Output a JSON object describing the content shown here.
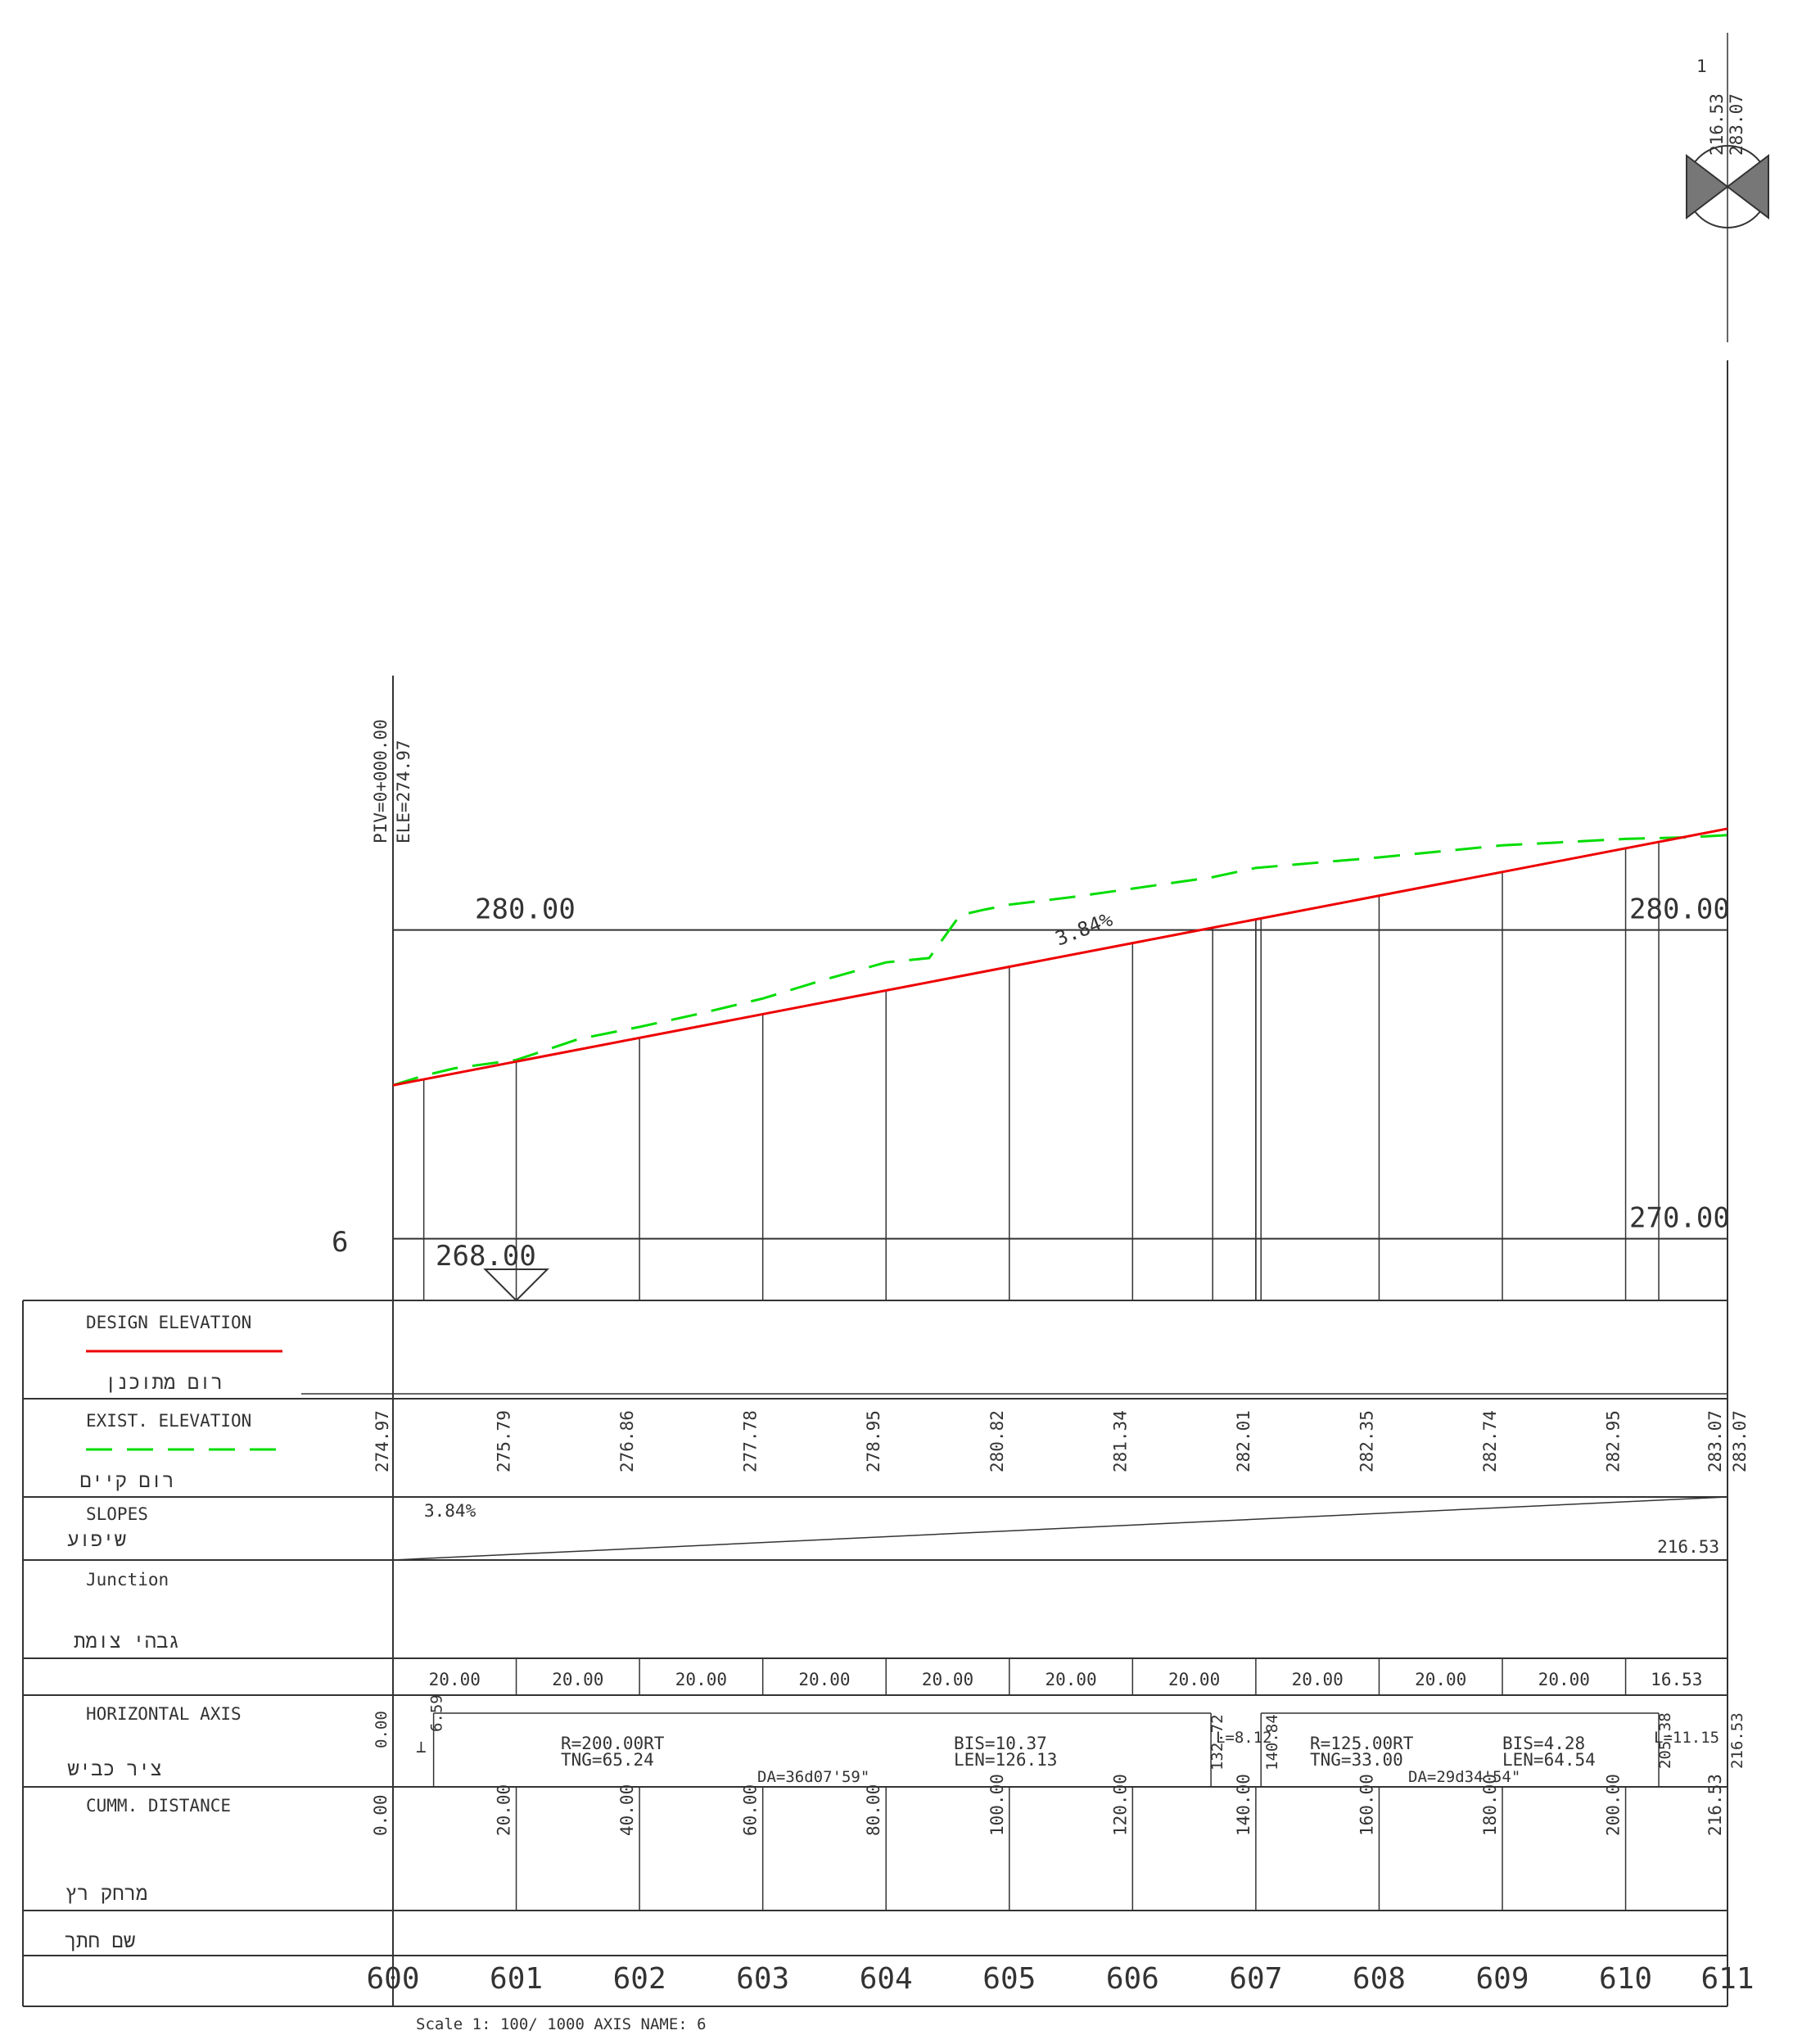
{
  "profile": {
    "sheet_number": "1",
    "axis_marker": "6",
    "end_labels": [
      "216.53",
      "283.07"
    ],
    "pvi_label": "PIV=0+000.00",
    "ele_label": "ELE=274.97",
    "slope_label": "3.84%",
    "gridlines": [
      {
        "label_left": "280.00",
        "label_right": "280.00",
        "elevation": 280
      },
      {
        "label_left": "",
        "label_right": "270.00",
        "elevation": 270
      }
    ],
    "datum_label": "268.00",
    "datum_elevation": 268
  },
  "table": {
    "rows": {
      "design_en": "DESIGN ELEVATION",
      "design_he": "רום מתוכנן",
      "exist_en": "EXIST. ELEVATION",
      "exist_he": "רום קיים",
      "slopes_en": "SLOPES",
      "slopes_he": "שיפוע",
      "junction_en": "Junction",
      "junction_he": "גבהי צומת",
      "haxis_en": "HORIZONTAL AXIS",
      "haxis_he": "ציר כביש",
      "cumm_en": "CUMM.    DISTANCE",
      "cumm_he": "מרחק רץ",
      "section_he": "שם חתך"
    },
    "exist_elevations": [
      "274.97",
      "275.79",
      "276.86",
      "277.78",
      "278.95",
      "280.82",
      "281.34",
      "282.01",
      "282.35",
      "282.74",
      "282.95",
      "283.07"
    ],
    "slope_text": "3.84%",
    "slope_length": "216.53",
    "intervals": [
      "20.00",
      "20.00",
      "20.00",
      "20.00",
      "20.00",
      "20.00",
      "20.00",
      "20.00",
      "20.00",
      "20.00",
      "16.53"
    ],
    "cumm_distances": [
      "0.00",
      "20.00",
      "40.00",
      "60.00",
      "80.00",
      "100.00",
      "120.00",
      "140.00",
      "160.00",
      "180.00",
      "200.00",
      "216.53"
    ],
    "sections": [
      "600",
      "601",
      "602",
      "603",
      "604",
      "605",
      "606",
      "607",
      "608",
      "609",
      "610",
      "611"
    ],
    "horizontal_axis": {
      "start": "0.00",
      "curve1": {
        "r": "R=200.00RT",
        "tng": "TNG=65.24",
        "bis": "BIS=10.37",
        "len": "LEN=126.13",
        "da": "DA=36d07'59\"",
        "pc": "6.59",
        "pt": "132.72",
        "l": "L=8.12"
      },
      "curve2": {
        "r": "R=125.00RT",
        "tng": "TNG=33.00",
        "bis": "BIS=4.28",
        "len": "LEN=64.54",
        "da": "DA=29d34'54\"",
        "pc": "140.84",
        "pt": "205.38",
        "l": "L=11.15"
      },
      "end": "216.53"
    },
    "scale_caption": "Scale  1:   100/  1000 AXIS NAME:    6"
  },
  "chart_data": {
    "type": "line",
    "xlabel": "",
    "ylabel": "",
    "x": [
      0,
      20,
      40,
      60,
      80,
      100,
      120,
      140,
      160,
      180,
      200,
      216.53
    ],
    "series": [
      {
        "name": "DESIGN ELEVATION",
        "color": "#ee0000",
        "style": "solid",
        "x": [
          0,
          216.53
        ],
        "values": [
          274.97,
          283.28
        ]
      },
      {
        "name": "EXIST. ELEVATION",
        "color": "#00dd00",
        "style": "dashed",
        "x": [
          0,
          5,
          10,
          20,
          25,
          30,
          40,
          50,
          60,
          70,
          80,
          87,
          92,
          96,
          100,
          110,
          120,
          133,
          140,
          160,
          180,
          200,
          210,
          216.53
        ],
        "values": [
          274.97,
          275.28,
          275.52,
          275.79,
          276.12,
          276.46,
          276.86,
          277.3,
          277.78,
          278.39,
          278.95,
          279.09,
          280.48,
          280.66,
          280.82,
          281.06,
          281.34,
          281.71,
          282.01,
          282.35,
          282.74,
          282.95,
          283.0,
          283.07
        ]
      }
    ],
    "xlim": [
      0,
      216.53
    ],
    "ylim": [
      268,
      285
    ]
  }
}
